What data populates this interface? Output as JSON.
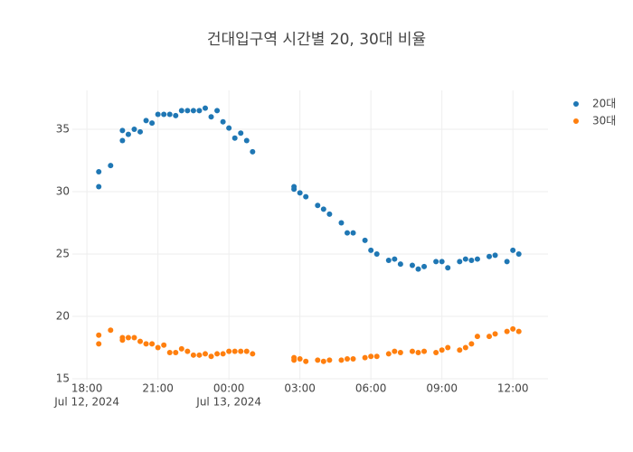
{
  "chart_data": {
    "type": "scatter",
    "title": "건대입구역 시간별 20, 30대 비율",
    "x": [
      "2024-07-12 18:30",
      "2024-07-12 18:30",
      "2024-07-12 19:00",
      "2024-07-12 19:30",
      "2024-07-12 19:30",
      "2024-07-12 19:45",
      "2024-07-12 20:00",
      "2024-07-12 20:15",
      "2024-07-12 20:30",
      "2024-07-12 20:45",
      "2024-07-12 21:00",
      "2024-07-12 21:15",
      "2024-07-12 21:30",
      "2024-07-12 21:45",
      "2024-07-12 22:00",
      "2024-07-12 22:15",
      "2024-07-12 22:30",
      "2024-07-12 22:45",
      "2024-07-12 23:00",
      "2024-07-12 23:15",
      "2024-07-12 23:30",
      "2024-07-12 23:45",
      "2024-07-13 00:00",
      "2024-07-13 00:15",
      "2024-07-13 00:30",
      "2024-07-13 00:45",
      "2024-07-13 01:00",
      "2024-07-13 02:45",
      "2024-07-13 02:45",
      "2024-07-13 03:00",
      "2024-07-13 03:15",
      "2024-07-13 03:45",
      "2024-07-13 04:00",
      "2024-07-13 04:15",
      "2024-07-13 04:45",
      "2024-07-13 05:00",
      "2024-07-13 05:15",
      "2024-07-13 05:45",
      "2024-07-13 06:00",
      "2024-07-13 06:15",
      "2024-07-13 06:45",
      "2024-07-13 07:00",
      "2024-07-13 07:15",
      "2024-07-13 07:45",
      "2024-07-13 08:00",
      "2024-07-13 08:15",
      "2024-07-13 08:45",
      "2024-07-13 09:00",
      "2024-07-13 09:15",
      "2024-07-13 09:45",
      "2024-07-13 10:00",
      "2024-07-13 10:15",
      "2024-07-13 10:30",
      "2024-07-13 11:00",
      "2024-07-13 11:15",
      "2024-07-13 11:45",
      "2024-07-13 12:00",
      "2024-07-13 12:15"
    ],
    "series": [
      {
        "name": "20대",
        "color": "#1f77b4",
        "values": [
          30.4,
          31.6,
          32.1,
          34.1,
          34.9,
          34.6,
          35.0,
          34.8,
          35.7,
          35.5,
          36.2,
          36.2,
          36.2,
          36.1,
          36.5,
          36.5,
          36.5,
          36.5,
          36.7,
          36.0,
          36.5,
          35.6,
          35.1,
          34.3,
          34.7,
          34.1,
          33.2,
          30.4,
          30.2,
          29.9,
          29.6,
          28.9,
          28.6,
          28.2,
          27.5,
          26.7,
          26.7,
          26.1,
          25.3,
          25.0,
          24.5,
          24.6,
          24.2,
          24.1,
          23.8,
          24.0,
          24.4,
          24.4,
          23.9,
          24.4,
          24.6,
          24.5,
          24.6,
          24.8,
          24.9,
          24.4,
          25.3,
          25.0
        ]
      },
      {
        "name": "30대",
        "color": "#ff7f0e",
        "values": [
          18.5,
          17.8,
          18.9,
          18.3,
          18.1,
          18.3,
          18.3,
          18.0,
          17.8,
          17.8,
          17.5,
          17.7,
          17.1,
          17.1,
          17.4,
          17.2,
          16.9,
          16.9,
          17.0,
          16.8,
          17.0,
          17.0,
          17.2,
          17.2,
          17.2,
          17.2,
          17.0,
          16.5,
          16.7,
          16.6,
          16.4,
          16.5,
          16.4,
          16.5,
          16.5,
          16.6,
          16.6,
          16.7,
          16.8,
          16.8,
          17.0,
          17.2,
          17.1,
          17.2,
          17.1,
          17.2,
          17.1,
          17.3,
          17.5,
          17.3,
          17.5,
          17.8,
          18.4,
          18.4,
          18.6,
          18.8,
          19.0,
          18.8
        ]
      }
    ],
    "xlim": [
      "2024-07-12 17:23",
      "2024-07-13 13:29"
    ],
    "xticks": [
      {
        "value": "2024-07-12 18:00",
        "label": [
          "18:00",
          "Jul 12, 2024"
        ]
      },
      {
        "value": "2024-07-12 21:00",
        "label": [
          "21:00"
        ]
      },
      {
        "value": "2024-07-13 00:00",
        "label": [
          "00:00",
          "Jul 13, 2024"
        ]
      },
      {
        "value": "2024-07-13 03:00",
        "label": [
          "03:00"
        ]
      },
      {
        "value": "2024-07-13 06:00",
        "label": [
          "06:00"
        ]
      },
      {
        "value": "2024-07-13 09:00",
        "label": [
          "09:00"
        ]
      },
      {
        "value": "2024-07-13 12:00",
        "label": [
          "12:00"
        ]
      }
    ],
    "ylim": [
      14.93,
      38.12
    ],
    "yticks": [
      15,
      20,
      25,
      30,
      35
    ],
    "grid": true,
    "legend": "top-right"
  }
}
